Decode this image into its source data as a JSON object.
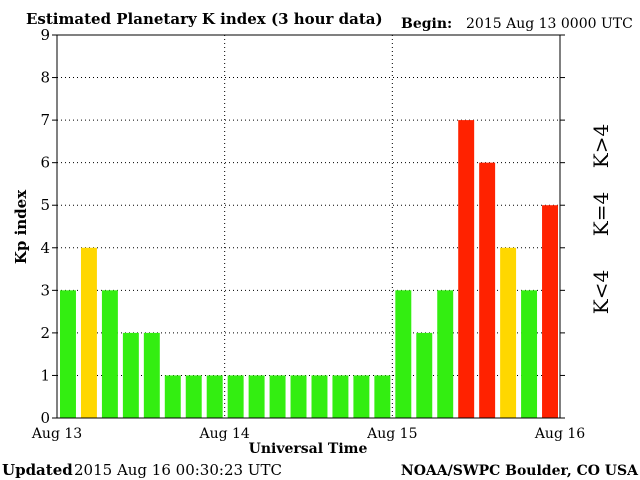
{
  "header": {
    "title": "Estimated Planetary K index (3 hour data)",
    "begin_label": "Begin:",
    "begin_value": "2015 Aug 13 0000 UTC"
  },
  "footer": {
    "updated_label": "Updated",
    "updated_value": "2015 Aug 16 00:30:23 UTC",
    "source": "NOAA/SWPC Boulder, CO USA"
  },
  "legend": {
    "below": "K<4",
    "equal": "K=4",
    "above": "K>4"
  },
  "colors": {
    "below": "#33ee11",
    "equal": "#ffd700",
    "above": "#ff2200",
    "grid": "#000000"
  },
  "chart_data": {
    "type": "bar",
    "title": "Estimated Planetary K index (3 hour data)",
    "xlabel": "Universal Time",
    "ylabel": "Kp index",
    "ylim": [
      0,
      9
    ],
    "y_ticks": [
      "0",
      "1",
      "2",
      "3",
      "4",
      "5",
      "6",
      "7",
      "8",
      "9"
    ],
    "x_ticks": [
      "Aug 13",
      "Aug 14",
      "Aug 15",
      "Aug 16"
    ],
    "grid": true,
    "legend_position": "right",
    "values": [
      3,
      4,
      3,
      2,
      2,
      1,
      1,
      1,
      1,
      1,
      1,
      1,
      1,
      1,
      1,
      1,
      3,
      2,
      3,
      7,
      6,
      4,
      3,
      5
    ]
  }
}
